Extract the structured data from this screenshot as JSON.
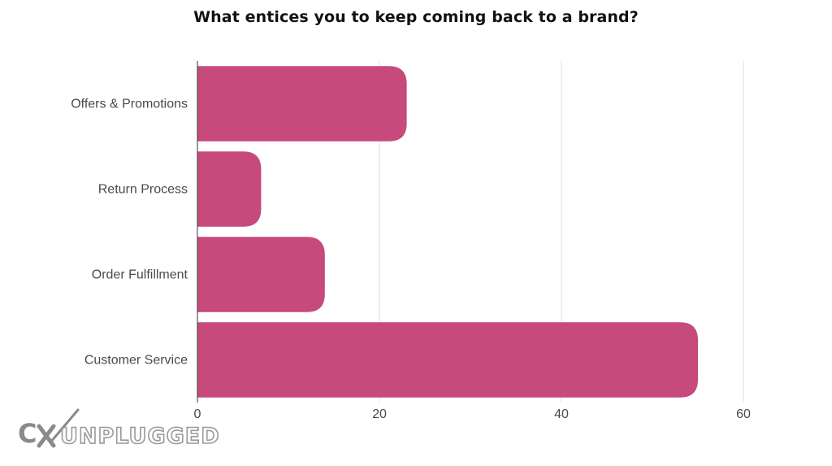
{
  "chart_data": {
    "type": "bar",
    "orientation": "horizontal",
    "title": "What entices you to keep coming back to a brand?",
    "xlabel": "",
    "ylabel": "",
    "categories": [
      "Offers & Promotions",
      "Return Process",
      "Order Fulfillment",
      "Customer Service"
    ],
    "values": [
      23,
      7,
      14,
      55
    ],
    "xlim": [
      0,
      60
    ],
    "x_ticks": [
      0,
      20,
      40,
      60
    ],
    "grid": "vertical",
    "legend": "none",
    "bar_color": "#c64a7c"
  },
  "branding": {
    "logo_text": "CXUNPLUGGED",
    "logo_color": "#8a8a8a"
  }
}
